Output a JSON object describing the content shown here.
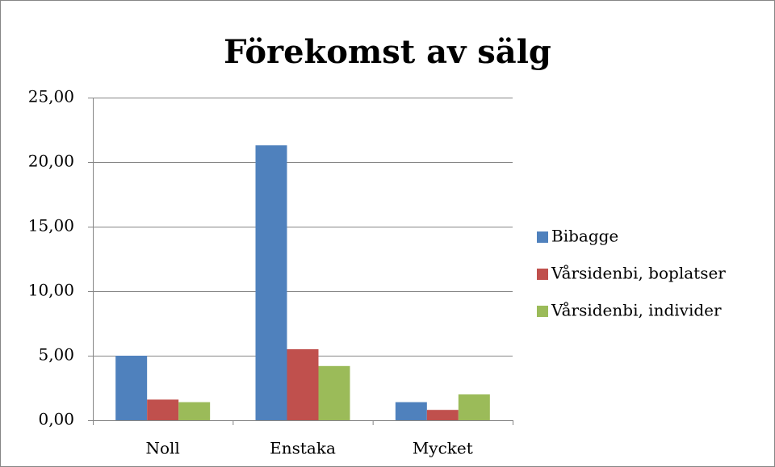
{
  "chart_data": {
    "type": "bar",
    "title": "Förekomst av sälg",
    "categories": [
      "Noll",
      "Enstaka",
      "Mycket"
    ],
    "series": [
      {
        "name": "Bibagge",
        "color": "#4f81bd",
        "values": [
          5.0,
          21.3,
          1.4
        ]
      },
      {
        "name": "Vårsidenbi, boplatser",
        "color": "#c0504d",
        "values": [
          1.6,
          5.5,
          0.8
        ]
      },
      {
        "name": "Vårsidenbi, individer",
        "color": "#9bbb59",
        "values": [
          1.4,
          4.2,
          2.0
        ]
      }
    ],
    "ylim": [
      0,
      25
    ],
    "yticks": [
      {
        "value": 0,
        "label": "0,00"
      },
      {
        "value": 5,
        "label": "5,00"
      },
      {
        "value": 10,
        "label": "10,00"
      },
      {
        "value": 15,
        "label": "15,00"
      },
      {
        "value": 20,
        "label": "20,00"
      },
      {
        "value": 25,
        "label": "25,00"
      }
    ],
    "grid": true,
    "legend": "right"
  }
}
